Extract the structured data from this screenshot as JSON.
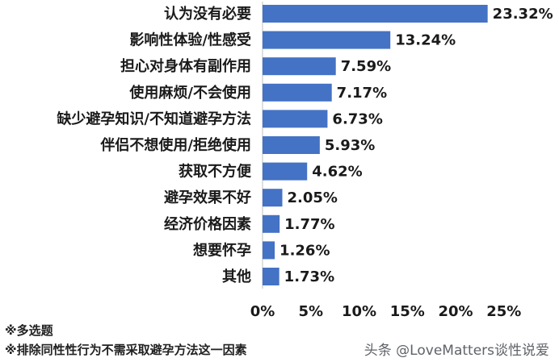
{
  "chart_data": {
    "type": "bar",
    "orientation": "horizontal",
    "categories": [
      "认为没有必要",
      "影响性体验/性感受",
      "担心对身体有副作用",
      "使用麻烦/不会使用",
      "缺少避孕知识/不知道避孕方法",
      "伴侣不想使用/拒绝使用",
      "获取不方便",
      "避孕效果不好",
      "经济价格因素",
      "想要怀孕",
      "其他"
    ],
    "values": [
      23.32,
      13.24,
      7.59,
      7.17,
      6.73,
      5.93,
      4.62,
      2.05,
      1.77,
      1.26,
      1.73
    ],
    "value_labels": [
      "23.32%",
      "13.24%",
      "7.59%",
      "7.17%",
      "6.73%",
      "5.93%",
      "4.62%",
      "2.05%",
      "1.77%",
      "1.26%",
      "1.73%"
    ],
    "x_ticks": [
      0,
      5,
      10,
      15,
      20,
      25
    ],
    "x_tick_labels": [
      "0%",
      "5%",
      "10%",
      "15%",
      "20%",
      "25%"
    ],
    "xlim": [
      0,
      25
    ],
    "bar_color": "#4472c4",
    "grid": false,
    "legend": "none"
  },
  "notes": [
    "※多选题",
    "※排除同性性行为不需采取避孕方法这一因素"
  ],
  "watermark": "头条 @LoveMatters谈性说爱"
}
